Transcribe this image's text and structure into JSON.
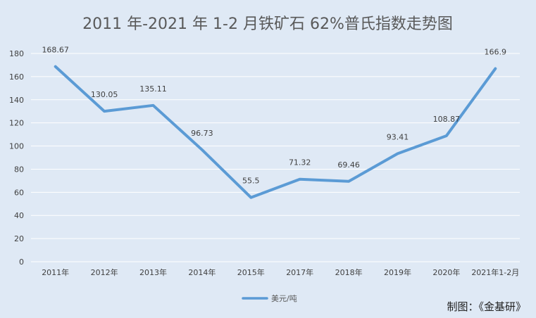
{
  "chart_data": {
    "type": "line",
    "title": "2011 年-2021 年 1-2 月铁矿石 62%普氏指数走势图",
    "categories": [
      "2011年",
      "2012年",
      "2013年",
      "2014年",
      "2015年",
      "2017年",
      "2018年",
      "2019年",
      "2020年",
      "2021年1-2月"
    ],
    "series": [
      {
        "name": "美元/吨",
        "values": [
          168.67,
          130.05,
          135.11,
          96.73,
          55.5,
          71.32,
          69.46,
          93.41,
          108.87,
          166.9
        ],
        "labels": [
          "168.67",
          "130.05",
          "135.11",
          "96.73",
          "55.5",
          "71.32",
          "69.46",
          "93.41",
          "108.87",
          "166.9"
        ],
        "color": "#5b9bd5"
      }
    ],
    "ylim": [
      0,
      180
    ],
    "yticks": [
      0,
      20,
      40,
      60,
      80,
      100,
      120,
      140,
      160,
      180
    ],
    "ytick_labels": [
      "0",
      "20",
      "40",
      "60",
      "80",
      "100",
      "120",
      "140",
      "160",
      "180"
    ],
    "grid": true,
    "legend_position": "bottom",
    "xlabel": "",
    "ylabel": ""
  },
  "source_note": "制图：《金基研》",
  "colors": {
    "background": "#dfe9f5",
    "gridline": "#ffffff",
    "line": "#5b9bd5"
  }
}
